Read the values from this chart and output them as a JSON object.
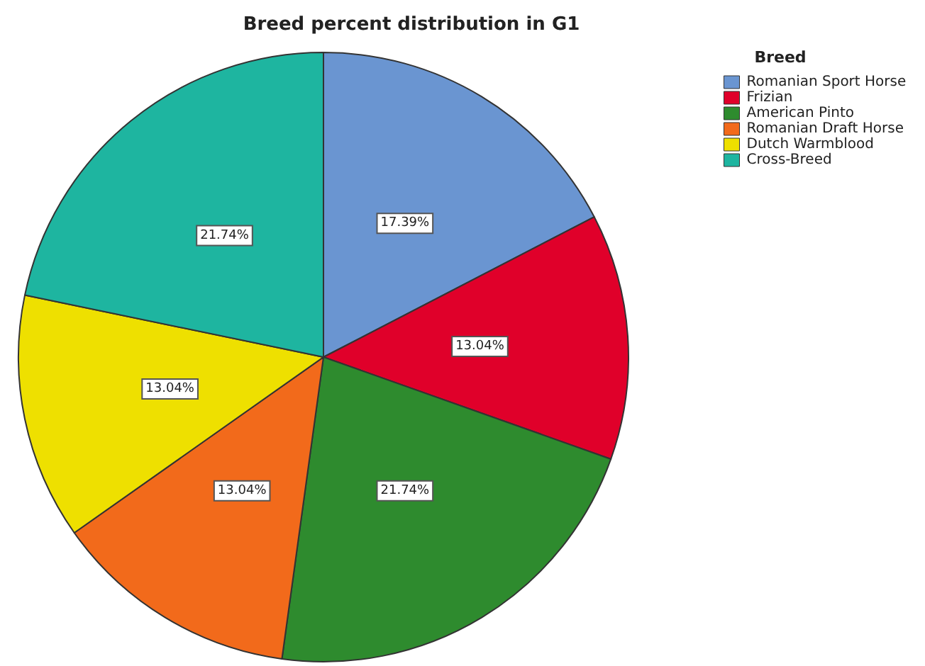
{
  "chart_data": {
    "type": "pie",
    "title": "Breed percent distribution in G1",
    "legend_title": "Breed",
    "legend": "top right",
    "categories": [
      "Romanian Sport Horse",
      "Frizian",
      "American Pinto",
      "Romanian Draft Horse",
      "Dutch Warmblood",
      "Cross-Breed"
    ],
    "values": [
      17.39,
      13.04,
      21.74,
      13.04,
      13.04,
      21.74
    ],
    "value_labels": [
      "17.39%",
      "13.04%",
      "21.74%",
      "13.04%",
      "13.04%",
      "21.74%"
    ],
    "colors": [
      "#6a95d1",
      "#e0002a",
      "#2e8b2e",
      "#f26a1b",
      "#eee000",
      "#1eb5a0"
    ]
  }
}
